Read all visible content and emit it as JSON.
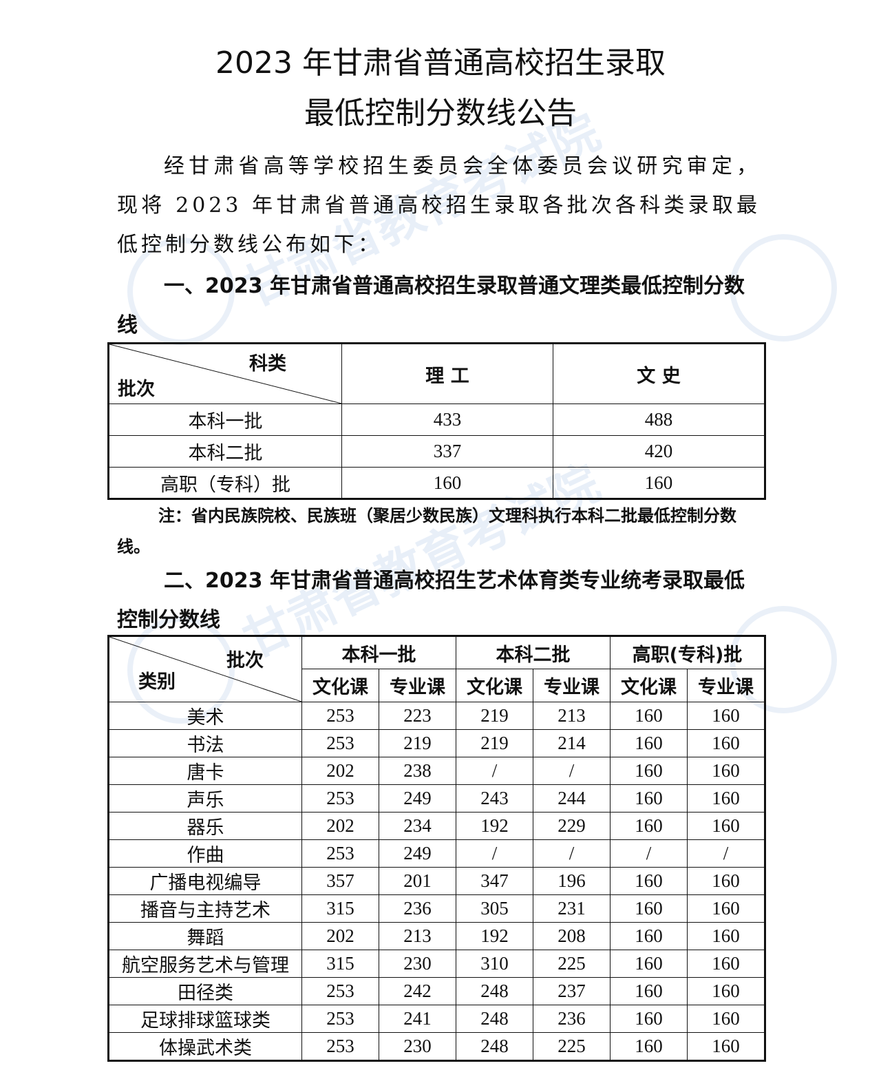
{
  "title": {
    "line1": "2023 年甘肃省普通高校招生录取",
    "line2": "最低控制分数线公告"
  },
  "intro": "经甘肃省高等学校招生委员会全体委员会议研究审定，现将 2023 年甘肃省普通高校招生录取各批次各科类录取最低控制分数线公布如下：",
  "section1": {
    "heading": "一、2023 年甘肃省普通高校招生录取普通文理类最低控制分数线",
    "corner_top": "科类",
    "corner_bottom": "批次",
    "columns": [
      "理 工",
      "文 史"
    ],
    "rows": [
      {
        "batch": "本科一批",
        "values": [
          "433",
          "488"
        ]
      },
      {
        "batch": "本科二批",
        "values": [
          "337",
          "420"
        ]
      },
      {
        "batch": "高职（专科）批",
        "values": [
          "160",
          "160"
        ]
      }
    ],
    "note": "注：省内民族院校、民族班（聚居少数民族）文理科执行本科二批最低控制分数线。"
  },
  "section2": {
    "heading": "二、2023 年甘肃省普通高校招生艺术体育类专业统考录取最低控制分数线",
    "corner_top": "批次",
    "corner_bottom": "类别",
    "batches": [
      "本科一批",
      "本科二批",
      "高职(专科)批"
    ],
    "subcolumns": [
      "文化课",
      "专业课",
      "文化课",
      "专业课",
      "文化课",
      "专业课"
    ],
    "rows": [
      {
        "category": "美术",
        "values": [
          "253",
          "223",
          "219",
          "213",
          "160",
          "160"
        ]
      },
      {
        "category": "书法",
        "values": [
          "253",
          "219",
          "219",
          "214",
          "160",
          "160"
        ]
      },
      {
        "category": "唐卡",
        "values": [
          "202",
          "238",
          "/",
          "/",
          "160",
          "160"
        ]
      },
      {
        "category": "声乐",
        "values": [
          "253",
          "249",
          "243",
          "244",
          "160",
          "160"
        ]
      },
      {
        "category": "器乐",
        "values": [
          "202",
          "234",
          "192",
          "229",
          "160",
          "160"
        ]
      },
      {
        "category": "作曲",
        "values": [
          "253",
          "249",
          "/",
          "/",
          "/",
          "/"
        ]
      },
      {
        "category": "广播电视编导",
        "values": [
          "357",
          "201",
          "347",
          "196",
          "160",
          "160"
        ]
      },
      {
        "category": "播音与主持艺术",
        "values": [
          "315",
          "236",
          "305",
          "231",
          "160",
          "160"
        ]
      },
      {
        "category": "舞蹈",
        "values": [
          "202",
          "213",
          "192",
          "208",
          "160",
          "160"
        ]
      },
      {
        "category": "航空服务艺术与管理",
        "values": [
          "315",
          "230",
          "310",
          "225",
          "160",
          "160"
        ]
      },
      {
        "category": "田径类",
        "values": [
          "253",
          "242",
          "248",
          "237",
          "160",
          "160"
        ]
      },
      {
        "category": "足球排球篮球类",
        "values": [
          "253",
          "241",
          "248",
          "236",
          "160",
          "160"
        ]
      },
      {
        "category": "体操武术类",
        "values": [
          "253",
          "230",
          "248",
          "225",
          "160",
          "160"
        ]
      }
    ]
  },
  "watermark": "甘肃省教育考试院"
}
